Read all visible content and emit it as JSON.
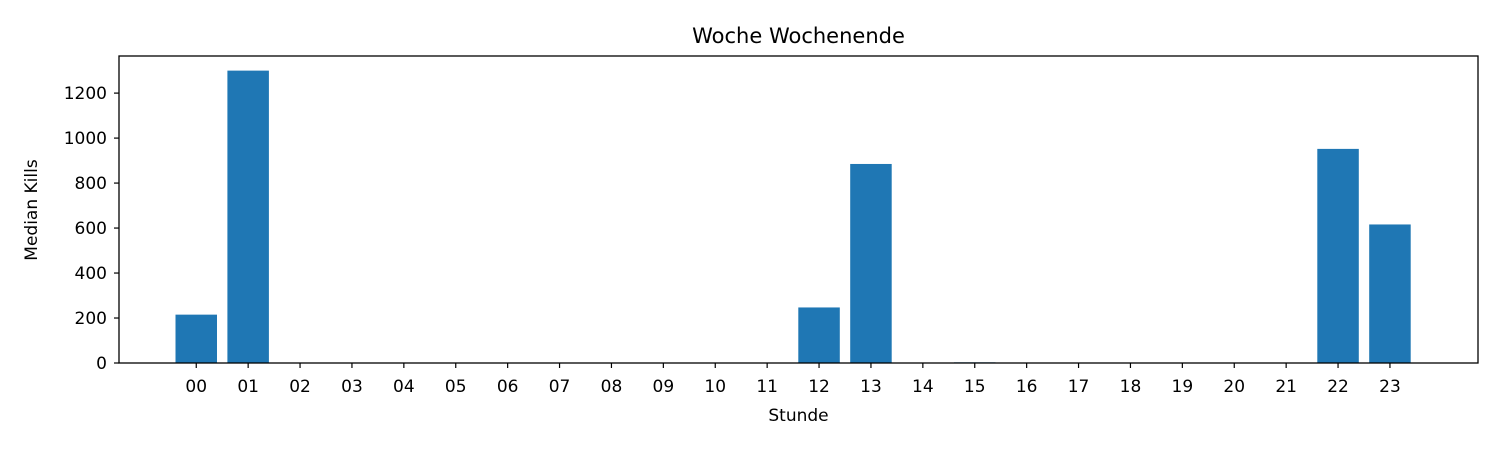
{
  "chart_data": {
    "type": "bar",
    "title": "Woche Wochenende",
    "xlabel": "Stunde",
    "ylabel": "Median Kills",
    "categories": [
      "00",
      "01",
      "02",
      "03",
      "04",
      "05",
      "06",
      "07",
      "08",
      "09",
      "10",
      "11",
      "12",
      "13",
      "14",
      "15",
      "16",
      "17",
      "18",
      "19",
      "20",
      "21",
      "22",
      "23"
    ],
    "values": [
      215,
      1300,
      0,
      0,
      0,
      0,
      0,
      0,
      0,
      0,
      0,
      0,
      247,
      885,
      0,
      3,
      0,
      0,
      0,
      0,
      0,
      0,
      952,
      616
    ],
    "yticks": [
      0,
      200,
      400,
      600,
      800,
      1000,
      1200
    ],
    "ylim": [
      0,
      1365
    ],
    "bar_color": "#1f77b4",
    "grid": false,
    "legend": "none"
  }
}
